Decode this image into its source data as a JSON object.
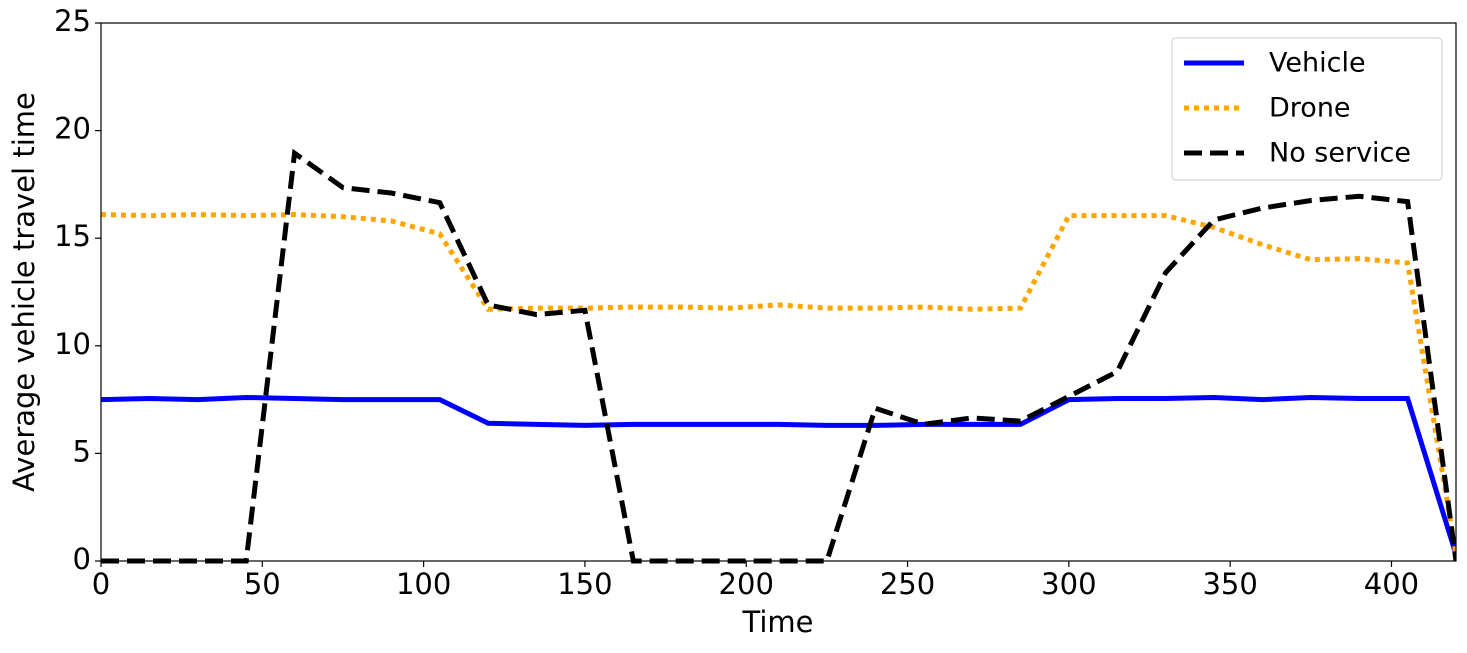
{
  "chart_data": {
    "type": "line",
    "xlabel": "Time",
    "ylabel": "Average vehicle travel time",
    "x": [
      0,
      15,
      30,
      45,
      60,
      75,
      90,
      105,
      120,
      135,
      150,
      165,
      180,
      195,
      210,
      225,
      240,
      255,
      270,
      285,
      300,
      315,
      330,
      345,
      360,
      375,
      390,
      405,
      420
    ],
    "series": [
      {
        "name": "Vehicle",
        "color": "#0000ff",
        "style": "solid",
        "values": [
          7.5,
          7.55,
          7.5,
          7.6,
          7.55,
          7.5,
          7.5,
          7.5,
          6.4,
          6.35,
          6.3,
          6.35,
          6.35,
          6.35,
          6.35,
          6.3,
          6.3,
          6.35,
          6.35,
          6.35,
          7.5,
          7.55,
          7.55,
          7.6,
          7.5,
          7.6,
          7.55,
          7.55,
          0.3
        ]
      },
      {
        "name": "Drone",
        "color": "#ffa500",
        "style": "dotted",
        "values": [
          16.1,
          16.05,
          16.1,
          16.05,
          16.1,
          16.0,
          15.8,
          15.2,
          11.7,
          11.75,
          11.75,
          11.8,
          11.8,
          11.75,
          11.9,
          11.75,
          11.75,
          11.8,
          11.7,
          11.75,
          16.05,
          16.05,
          16.05,
          15.5,
          14.7,
          14.0,
          14.05,
          13.85,
          0.3
        ]
      },
      {
        "name": "No service",
        "color": "#000000",
        "style": "dashed",
        "values": [
          0,
          0,
          0,
          0,
          18.95,
          17.35,
          17.1,
          16.65,
          11.9,
          11.45,
          11.65,
          0,
          0,
          0,
          0,
          0,
          7.1,
          6.35,
          6.65,
          6.5,
          7.65,
          8.8,
          13.4,
          15.85,
          16.4,
          16.75,
          16.95,
          16.7,
          0
        ]
      }
    ],
    "xlim": [
      0,
      420
    ],
    "xticks": [
      0,
      50,
      100,
      150,
      200,
      250,
      300,
      350,
      400
    ],
    "ylim": [
      0,
      25
    ],
    "yticks": [
      0,
      5,
      10,
      15,
      20,
      25
    ],
    "legend": "upper right"
  }
}
